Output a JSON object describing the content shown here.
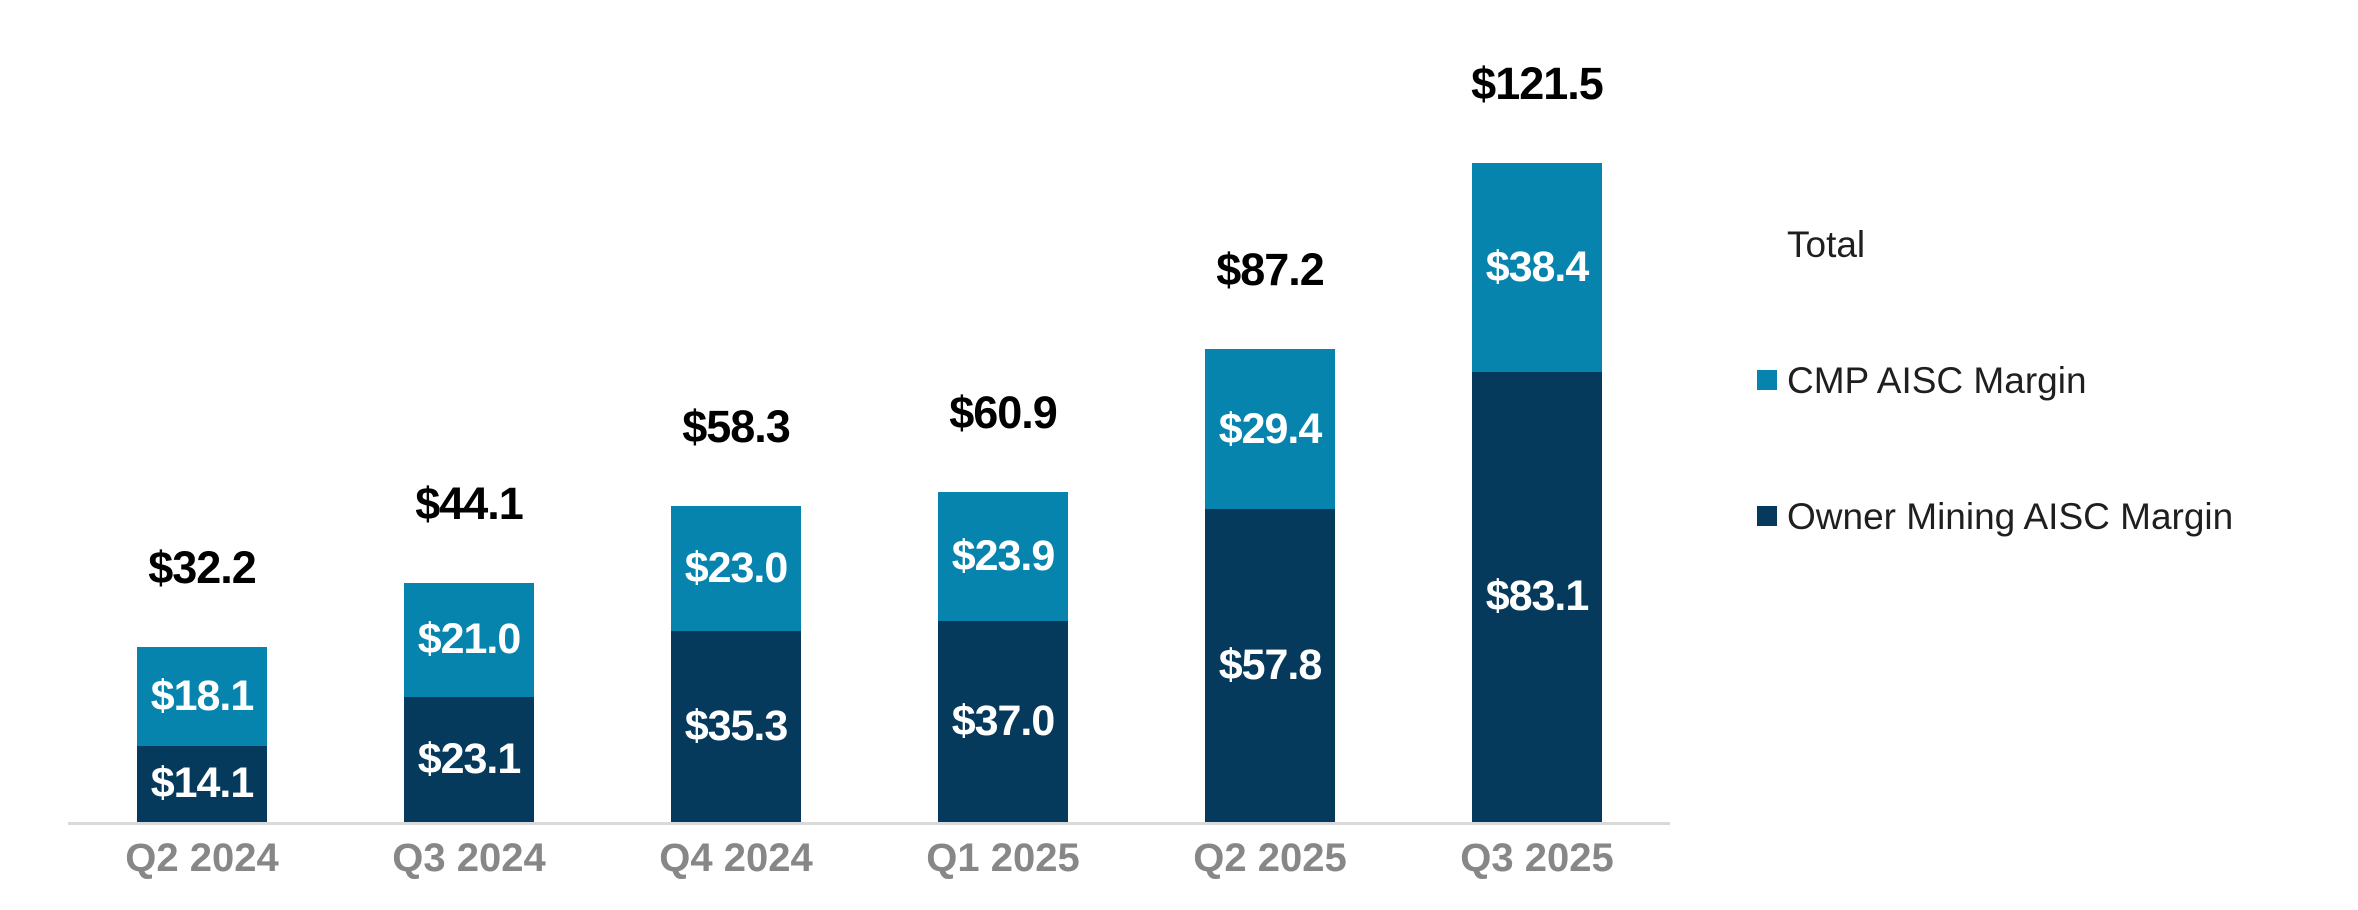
{
  "chart_data": {
    "type": "bar",
    "subtype": "stacked-column",
    "categories": [
      "Q2 2024",
      "Q3 2024",
      "Q4 2024",
      "Q1 2025",
      "Q2 2025",
      "Q3 2025"
    ],
    "series": [
      {
        "name": "Owner Mining AISC Margin",
        "stack_position": "bottom",
        "color": "#053A5C",
        "values": [
          14.1,
          23.1,
          35.3,
          37.0,
          57.8,
          83.1
        ],
        "labels": [
          "$14.1",
          "$23.1",
          "$35.3",
          "$37.0",
          "$57.8",
          "$83.1"
        ]
      },
      {
        "name": "CMP AISC Margin",
        "stack_position": "top",
        "color": "#0684AE",
        "values": [
          18.1,
          21.0,
          23.0,
          23.9,
          29.4,
          38.4
        ],
        "labels": [
          "$18.1",
          "$21.0",
          "$23.0",
          "$23.9",
          "$29.4",
          "$38.4"
        ]
      }
    ],
    "totals": [
      32.2,
      44.1,
      58.3,
      60.9,
      87.2,
      121.5
    ],
    "total_labels": [
      "$32.2",
      "$44.1",
      "$58.3",
      "$60.9",
      "$87.2",
      "$121.5"
    ],
    "title": "",
    "xlabel": "",
    "ylabel": "",
    "yaxis_visible": false,
    "grid": false,
    "legend_position": "right"
  },
  "legend": {
    "items": [
      {
        "label": "Total",
        "swatch": null
      },
      {
        "label": "CMP AISC Margin",
        "swatch": "#0684AE"
      },
      {
        "label": "Owner Mining AISC Margin",
        "swatch": "#053A5C"
      }
    ]
  },
  "colors": {
    "background": "#FFFFFF",
    "cmp_segment": "#0684AE",
    "owner_segment": "#053A5C",
    "axis_line": "#D9D9D9",
    "total_label_text": "#000000",
    "segment_label_text": "#FFFFFF",
    "category_label_text": "#878787",
    "legend_text": "#1F1F1F"
  }
}
